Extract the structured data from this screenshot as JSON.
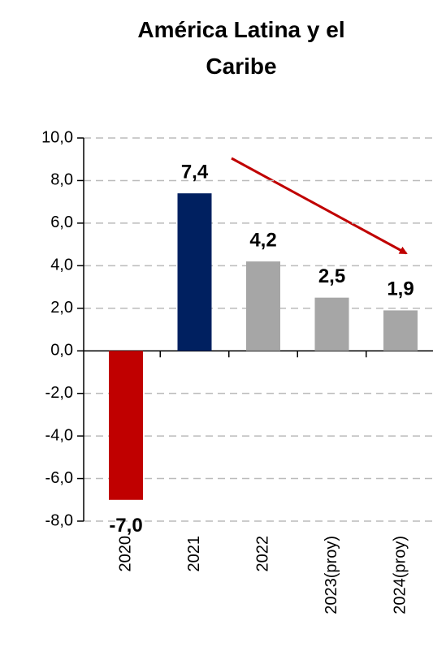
{
  "chart_data": {
    "type": "bar",
    "title": "América Latina y el Caribe",
    "categories": [
      "2020",
      "2021",
      "2022",
      "2023(proy)",
      "2024(proy)"
    ],
    "values": [
      -7.0,
      7.4,
      4.2,
      2.5,
      1.9
    ],
    "value_labels": [
      "-7,0",
      "7,4",
      "4,2",
      "2,5",
      "1,9"
    ],
    "colors": [
      "#c00000",
      "#002060",
      "#a6a6a6",
      "#a6a6a6",
      "#a6a6a6"
    ],
    "ylim": [
      -8,
      10
    ],
    "yticks": [
      {
        "value": -8,
        "label": "-8,0"
      },
      {
        "value": -6,
        "label": "-6,0"
      },
      {
        "value": -4,
        "label": "-4,0"
      },
      {
        "value": -2,
        "label": "-2,0"
      },
      {
        "value": 0,
        "label": "0,0"
      },
      {
        "value": 2,
        "label": "2,0"
      },
      {
        "value": 4,
        "label": "4,0"
      },
      {
        "value": 6,
        "label": "6,0"
      },
      {
        "value": 8,
        "label": "8,0"
      },
      {
        "value": 10,
        "label": "10,0"
      }
    ],
    "grid": true
  }
}
